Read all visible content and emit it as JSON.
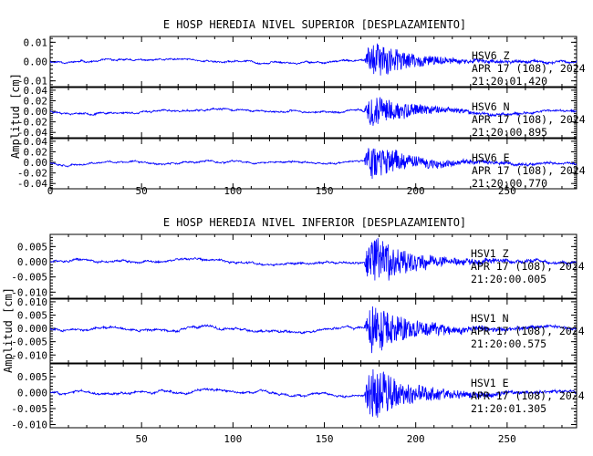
{
  "chart_data": [
    {
      "type": "line",
      "title": "E HOSP HEREDIA NIVEL SUPERIOR [DESPLAZAMIENTO]",
      "ylabel": "Amplitud [cm]",
      "xlabel": "",
      "xlim": [
        0,
        288
      ],
      "xticks": [
        0,
        50,
        100,
        150,
        200,
        250
      ],
      "line_color": "#0000ff",
      "grid": false,
      "series": [
        {
          "name": "HSV6 Z",
          "label": "HSV6   Z",
          "date": "APR 17 (108), 2024",
          "time": "21:20:01.420",
          "ylim": [
            -0.013,
            0.013
          ],
          "yticks": [
            0.01,
            0.0,
            -0.01
          ],
          "ytick_labels": [
            "0.01",
            "0.00",
            "-0.01"
          ],
          "noise": 0.0006,
          "peak": 0.011,
          "seed": 11
        },
        {
          "name": "HSV6 N",
          "label": "HSV6   N",
          "date": "APR 17 (108), 2024",
          "time": "21:20:00.895",
          "ylim": [
            -0.05,
            0.045
          ],
          "yticks": [
            0.04,
            0.02,
            0.0,
            -0.02,
            -0.04
          ],
          "ytick_labels": [
            "0.04",
            "0.02",
            "0.00",
            "-0.02",
            "-0.04"
          ],
          "noise": 0.0012,
          "peak": 0.034,
          "seed": 23
        },
        {
          "name": "HSV6 E",
          "label": "HSV6   E",
          "date": "APR 17 (108), 2024",
          "time": "21:20:00.770",
          "ylim": [
            -0.05,
            0.045
          ],
          "yticks": [
            0.04,
            0.02,
            0.0,
            -0.02,
            -0.04
          ],
          "ytick_labels": [
            "0.04",
            "0.02",
            "0.00",
            "-0.02",
            "-0.04"
          ],
          "noise": 0.0012,
          "peak": 0.04,
          "seed": 37
        }
      ]
    },
    {
      "type": "line",
      "title": "E HOSP HEREDIA NIVEL INFERIOR [DESPLAZAMIENTO]",
      "ylabel": "Amplitud [cm]",
      "xlabel": "",
      "xlim": [
        0,
        288
      ],
      "xticks": [
        50,
        100,
        150,
        200,
        250
      ],
      "line_color": "#0000ff",
      "grid": false,
      "series": [
        {
          "name": "HSV1 Z",
          "label": "HSV1   Z",
          "date": "APR 17 (108), 2024",
          "time": "21:20:00.005",
          "ylim": [
            -0.012,
            0.009
          ],
          "yticks": [
            0.005,
            0.0,
            -0.005,
            -0.01
          ],
          "ytick_labels": [
            "0.005",
            "0.000",
            "-0.005",
            "-0.010"
          ],
          "noise": 0.0005,
          "peak": 0.0095,
          "seed": 51
        },
        {
          "name": "HSV1 N",
          "label": "HSV1   N",
          "date": "APR 17 (108), 2024",
          "time": "21:20:00.575",
          "ylim": [
            -0.013,
            0.011
          ],
          "yticks": [
            0.01,
            0.005,
            0.0,
            -0.005,
            -0.01
          ],
          "ytick_labels": [
            "0.010",
            "0.005",
            "0.000",
            "-0.005",
            "-0.010"
          ],
          "noise": 0.0005,
          "peak": 0.0105,
          "seed": 67
        },
        {
          "name": "HSV1 E",
          "label": "HSV1   E",
          "date": "APR 17 (108), 2024",
          "time": "21:20:01.305",
          "ylim": [
            -0.011,
            0.009
          ],
          "yticks": [
            0.005,
            0.0,
            -0.005,
            -0.01
          ],
          "ytick_labels": [
            "0.005",
            "0.000",
            "-0.005",
            "-0.010"
          ],
          "noise": 0.0005,
          "peak": 0.0095,
          "seed": 83
        }
      ]
    }
  ]
}
